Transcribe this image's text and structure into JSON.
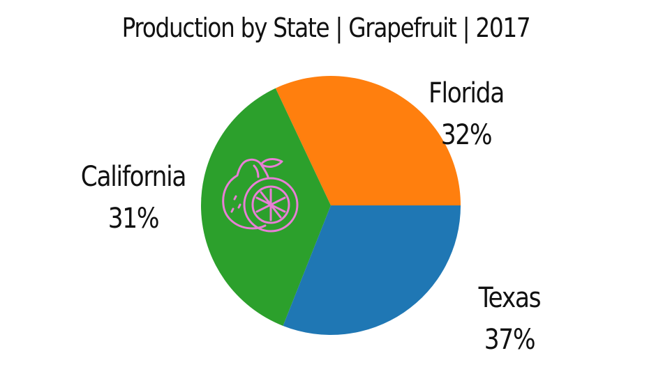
{
  "chart_data": {
    "type": "pie",
    "title": "Production by State | Grapefruit | 2017",
    "slices": [
      {
        "label": "Florida",
        "value": 32,
        "value_text": "32%",
        "color": "#ff7f0e"
      },
      {
        "label": "Texas",
        "value": 37,
        "value_text": "37%",
        "color": "#2ca02c"
      },
      {
        "label": "California",
        "value": 31,
        "value_text": "31%",
        "color": "#1f77b4"
      }
    ],
    "start_angle_deg": 0,
    "direction": "counterclockwise",
    "legend": "none"
  },
  "icon": {
    "name": "grapefruit-icon",
    "color": "#e87fd6"
  }
}
